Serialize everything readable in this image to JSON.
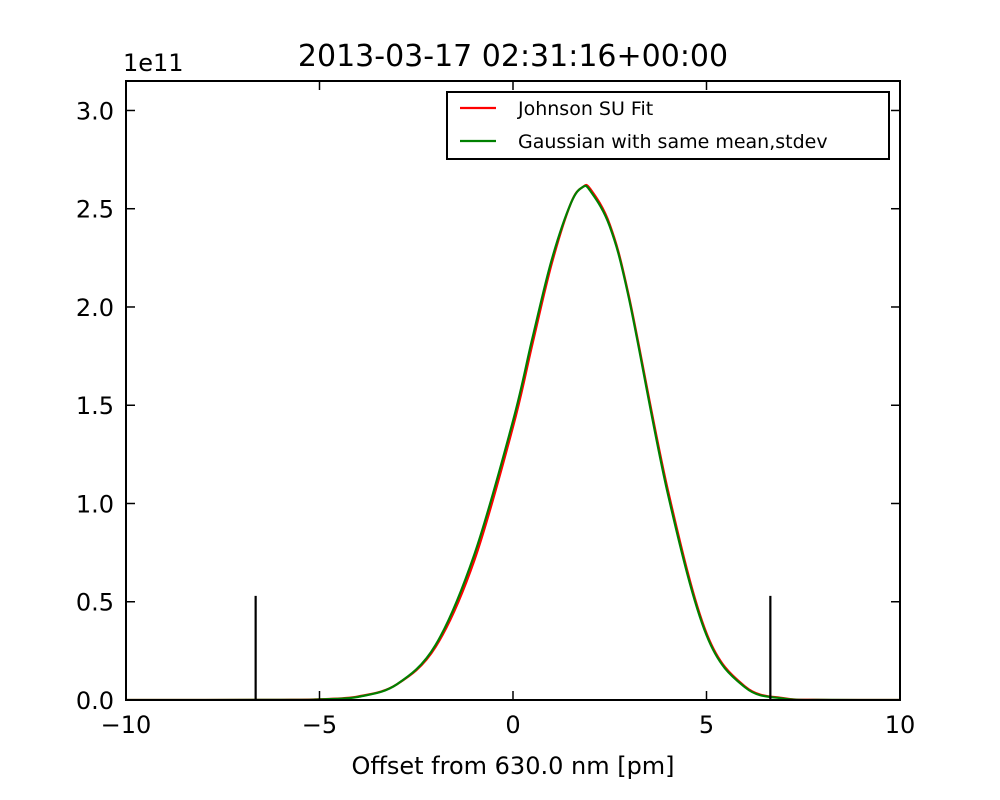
{
  "chart_data": {
    "type": "line",
    "title": "2013-03-17 02:31:16+00:00",
    "xlabel": "Offset from 630.0 nm [pm]",
    "ylabel": "",
    "y_offset_label": "1e11",
    "xlim": [
      -10,
      10
    ],
    "ylim": [
      0,
      3.15
    ],
    "y_scale_multiplier": 100000000000.0,
    "xticks": [
      -10,
      -5,
      0,
      5,
      10
    ],
    "xtick_labels": [
      "−10",
      "−5",
      "0",
      "5",
      "10"
    ],
    "yticks": [
      0.0,
      0.5,
      1.0,
      1.5,
      2.0,
      2.5,
      3.0
    ],
    "ytick_labels": [
      "0.0",
      "0.5",
      "1.0",
      "1.5",
      "2.0",
      "2.5",
      "3.0"
    ],
    "grid": false,
    "legend_position": "top-right",
    "series": [
      {
        "name": "Johnson SU Fit",
        "color": "#ff0000",
        "x": [
          -10,
          -6,
          -5,
          -4,
          -3,
          -2,
          -1,
          0,
          0.5,
          1,
          1.5,
          1.8,
          2,
          2.5,
          3,
          4,
          5,
          6,
          7,
          8,
          10
        ],
        "y": [
          0,
          0.001,
          0.004,
          0.018,
          0.08,
          0.27,
          0.71,
          1.39,
          1.81,
          2.22,
          2.53,
          2.61,
          2.6,
          2.42,
          2.05,
          1.07,
          0.34,
          0.068,
          0.009,
          0.001,
          0
        ]
      },
      {
        "name": "Gaussian with same mean,stdev",
        "color": "#008000",
        "x": [
          -10,
          -6,
          -5,
          -4,
          -3,
          -2,
          -1,
          0,
          0.5,
          1,
          1.5,
          1.8,
          2,
          2.5,
          3,
          4,
          5,
          6,
          7,
          8,
          10
        ],
        "y": [
          0,
          0.0006,
          0.003,
          0.016,
          0.08,
          0.28,
          0.74,
          1.42,
          1.84,
          2.24,
          2.53,
          2.61,
          2.59,
          2.41,
          2.04,
          1.05,
          0.33,
          0.064,
          0.007,
          0.0005,
          0
        ]
      }
    ],
    "vlines": [
      {
        "x": -6.65,
        "ymin": 0,
        "ymax": 0.53,
        "color": "#000000"
      },
      {
        "x": 6.65,
        "ymin": 0,
        "ymax": 0.53,
        "color": "#000000"
      }
    ]
  }
}
